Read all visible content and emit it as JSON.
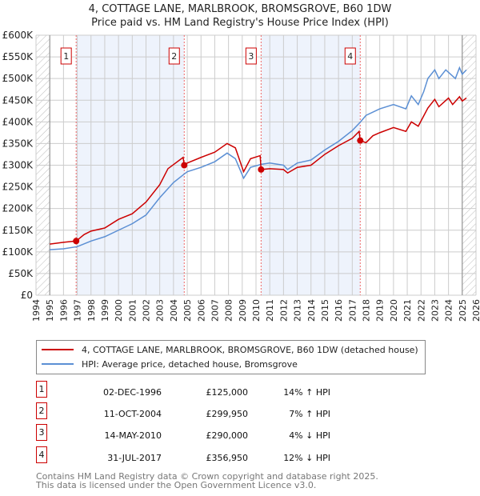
{
  "chart_data": {
    "type": "line",
    "title": "4, COTTAGE LANE, MARLBROOK, BROMSGROVE, B60 1DW",
    "subtitle": "Price paid vs. HM Land Registry's House Price Index (HPI)",
    "xlim": [
      1994,
      2026
    ],
    "ylim": [
      0,
      600000
    ],
    "yticks": [
      {
        "v": 0,
        "l": "£0"
      },
      {
        "v": 50000,
        "l": "£50K"
      },
      {
        "v": 100000,
        "l": "£100K"
      },
      {
        "v": 150000,
        "l": "£150K"
      },
      {
        "v": 200000,
        "l": "£200K"
      },
      {
        "v": 250000,
        "l": "£250K"
      },
      {
        "v": 300000,
        "l": "£300K"
      },
      {
        "v": 350000,
        "l": "£350K"
      },
      {
        "v": 400000,
        "l": "£400K"
      },
      {
        "v": 450000,
        "l": "£450K"
      },
      {
        "v": 500000,
        "l": "£500K"
      },
      {
        "v": 550000,
        "l": "£550K"
      },
      {
        "v": 600000,
        "l": "£600K"
      }
    ],
    "xticks": [
      "1994",
      "1995",
      "1996",
      "1997",
      "1998",
      "1999",
      "2000",
      "2001",
      "2002",
      "2003",
      "2004",
      "2005",
      "2006",
      "2007",
      "2008",
      "2009",
      "2010",
      "2011",
      "2012",
      "2013",
      "2014",
      "2015",
      "2016",
      "2017",
      "2018",
      "2019",
      "2020",
      "2021",
      "2022",
      "2023",
      "2024",
      "2025",
      "2026"
    ],
    "data_range": [
      1995,
      2025
    ],
    "series": [
      {
        "name": "4, COTTAGE LANE, MARLBROOK, BROMSGROVE, B60 1DW (detached house)",
        "color": "#cc0000",
        "x": [
          1995,
          1996,
          1996.92,
          1997.5,
          1998,
          1999,
          2000,
          2001,
          2002,
          2003,
          2003.6,
          2004.7,
          2004.78,
          2005,
          2006,
          2007,
          2007.9,
          2008.5,
          2009.1,
          2009.6,
          2010.3,
          2010.37,
          2011,
          2012,
          2012.3,
          2013,
          2014,
          2015,
          2016,
          2017,
          2017.5,
          2017.58,
          2018,
          2018.5,
          2019,
          2020,
          2020.9,
          2021.3,
          2021.8,
          2022.5,
          2023,
          2023.3,
          2024,
          2024.3,
          2024.8,
          2025,
          2025.3
        ],
        "y": [
          118000,
          122000,
          125000,
          140000,
          148000,
          155000,
          175000,
          188000,
          215000,
          255000,
          292000,
          318000,
          299950,
          305000,
          318000,
          330000,
          350000,
          340000,
          285000,
          315000,
          322000,
          290000,
          292000,
          290000,
          282000,
          295000,
          300000,
          325000,
          345000,
          362000,
          378000,
          356950,
          352000,
          368000,
          375000,
          387000,
          378000,
          400000,
          390000,
          432000,
          452000,
          435000,
          455000,
          440000,
          458000,
          448000,
          455000
        ]
      },
      {
        "name": "HPI: Average price, detached house, Bromsgrove",
        "color": "#5b8fd4",
        "x": [
          1995,
          1996,
          1997,
          1998,
          1999,
          2000,
          2001,
          2002,
          2003,
          2004,
          2004.8,
          2005,
          2006,
          2007,
          2007.9,
          2008.5,
          2009.1,
          2009.6,
          2010.4,
          2011,
          2012,
          2012.3,
          2013,
          2014,
          2015,
          2016,
          2017,
          2017.6,
          2018,
          2019,
          2020,
          2020.9,
          2021.3,
          2021.8,
          2022.2,
          2022.5,
          2023,
          2023.3,
          2023.8,
          2024.5,
          2024.8,
          2025,
          2025.3
        ],
        "y": [
          105000,
          107000,
          112000,
          125000,
          135000,
          150000,
          165000,
          185000,
          225000,
          260000,
          280000,
          285000,
          295000,
          308000,
          328000,
          315000,
          270000,
          295000,
          302000,
          305000,
          300000,
          290000,
          305000,
          312000,
          335000,
          355000,
          380000,
          400000,
          415000,
          430000,
          440000,
          430000,
          460000,
          440000,
          470000,
          500000,
          520000,
          500000,
          520000,
          500000,
          525000,
          510000,
          520000
        ]
      }
    ],
    "sales": [
      {
        "n": "1",
        "x": 1996.92,
        "y": 125000,
        "date": "02-DEC-1996",
        "price": "£125,000",
        "hpi": "14% ↑ HPI"
      },
      {
        "n": "2",
        "x": 2004.78,
        "y": 299950,
        "date": "11-OCT-2004",
        "price": "£299,950",
        "hpi": "7% ↑ HPI"
      },
      {
        "n": "3",
        "x": 2010.37,
        "y": 290000,
        "date": "14-MAY-2010",
        "price": "£290,000",
        "hpi": "4% ↓ HPI"
      },
      {
        "n": "4",
        "x": 2017.58,
        "y": 356950,
        "date": "31-JUL-2017",
        "price": "£356,950",
        "hpi": "12% ↓ HPI"
      }
    ]
  },
  "footer": {
    "line1": "Contains HM Land Registry data © Crown copyright and database right 2025.",
    "line2": "This data is licensed under the Open Government Licence v3.0."
  }
}
